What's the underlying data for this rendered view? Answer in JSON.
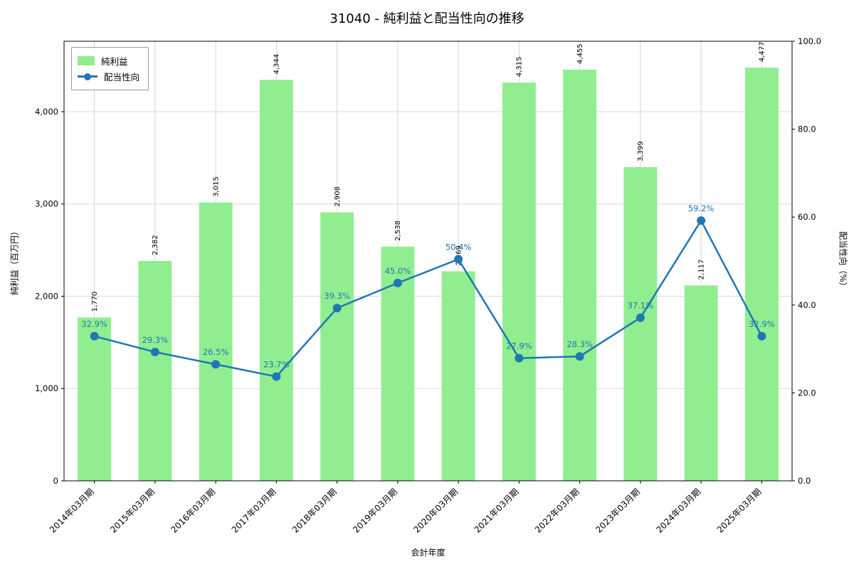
{
  "chart_data": {
    "type": "combo",
    "title": "31040 - 純利益と配当性向の推移",
    "xlabel": "会計年度",
    "ylabel_left": "純利益（百万円）",
    "ylabel_right": "配当性向（%）",
    "categories": [
      "2014年03月期",
      "2015年03月期",
      "2016年03月期",
      "2017年03月期",
      "2018年03月期",
      "2019年03月期",
      "2020年03月期",
      "2021年03月期",
      "2022年03月期",
      "2023年03月期",
      "2024年03月期",
      "2025年03月期"
    ],
    "series": [
      {
        "name": "純利益",
        "type": "bar",
        "axis": "left",
        "color": "#90ee90",
        "values": [
          1770,
          2382,
          3015,
          4344,
          2908,
          2538,
          2269,
          4315,
          4455,
          3399,
          2117,
          4477
        ],
        "value_labels": [
          "1,770",
          "2,382",
          "3,015",
          "4,344",
          "2,908",
          "2,538",
          "2,269",
          "4,315",
          "4,455",
          "3,399",
          "2,117",
          "4,477"
        ]
      },
      {
        "name": "配当性向",
        "type": "line",
        "axis": "right",
        "color": "#1f77b4",
        "values": [
          32.9,
          29.3,
          26.5,
          23.7,
          39.3,
          45.0,
          50.4,
          27.9,
          28.3,
          37.1,
          59.2,
          32.9
        ],
        "value_labels": [
          "32.9%",
          "29.3%",
          "26.5%",
          "23.7%",
          "39.3%",
          "45.0%",
          "50.4%",
          "27.9%",
          "28.3%",
          "37.1%",
          "59.2%",
          "32.9%"
        ]
      }
    ],
    "ylim_left": [
      0,
      4763
    ],
    "ylim_right": [
      0,
      100
    ],
    "yticks_left": {
      "values": [
        0,
        1000,
        2000,
        3000,
        4000
      ],
      "labels": [
        "0",
        "1,000",
        "2,000",
        "3,000",
        "4,000"
      ]
    },
    "yticks_right": {
      "values": [
        0,
        20,
        40,
        60,
        80,
        100
      ],
      "labels": [
        "0.0",
        "20.0",
        "40.0",
        "60.0",
        "80.0",
        "100.0"
      ]
    },
    "legend_position": "upper left",
    "grid": true,
    "grid_color": "#cccccc",
    "background": "#ffffff"
  }
}
